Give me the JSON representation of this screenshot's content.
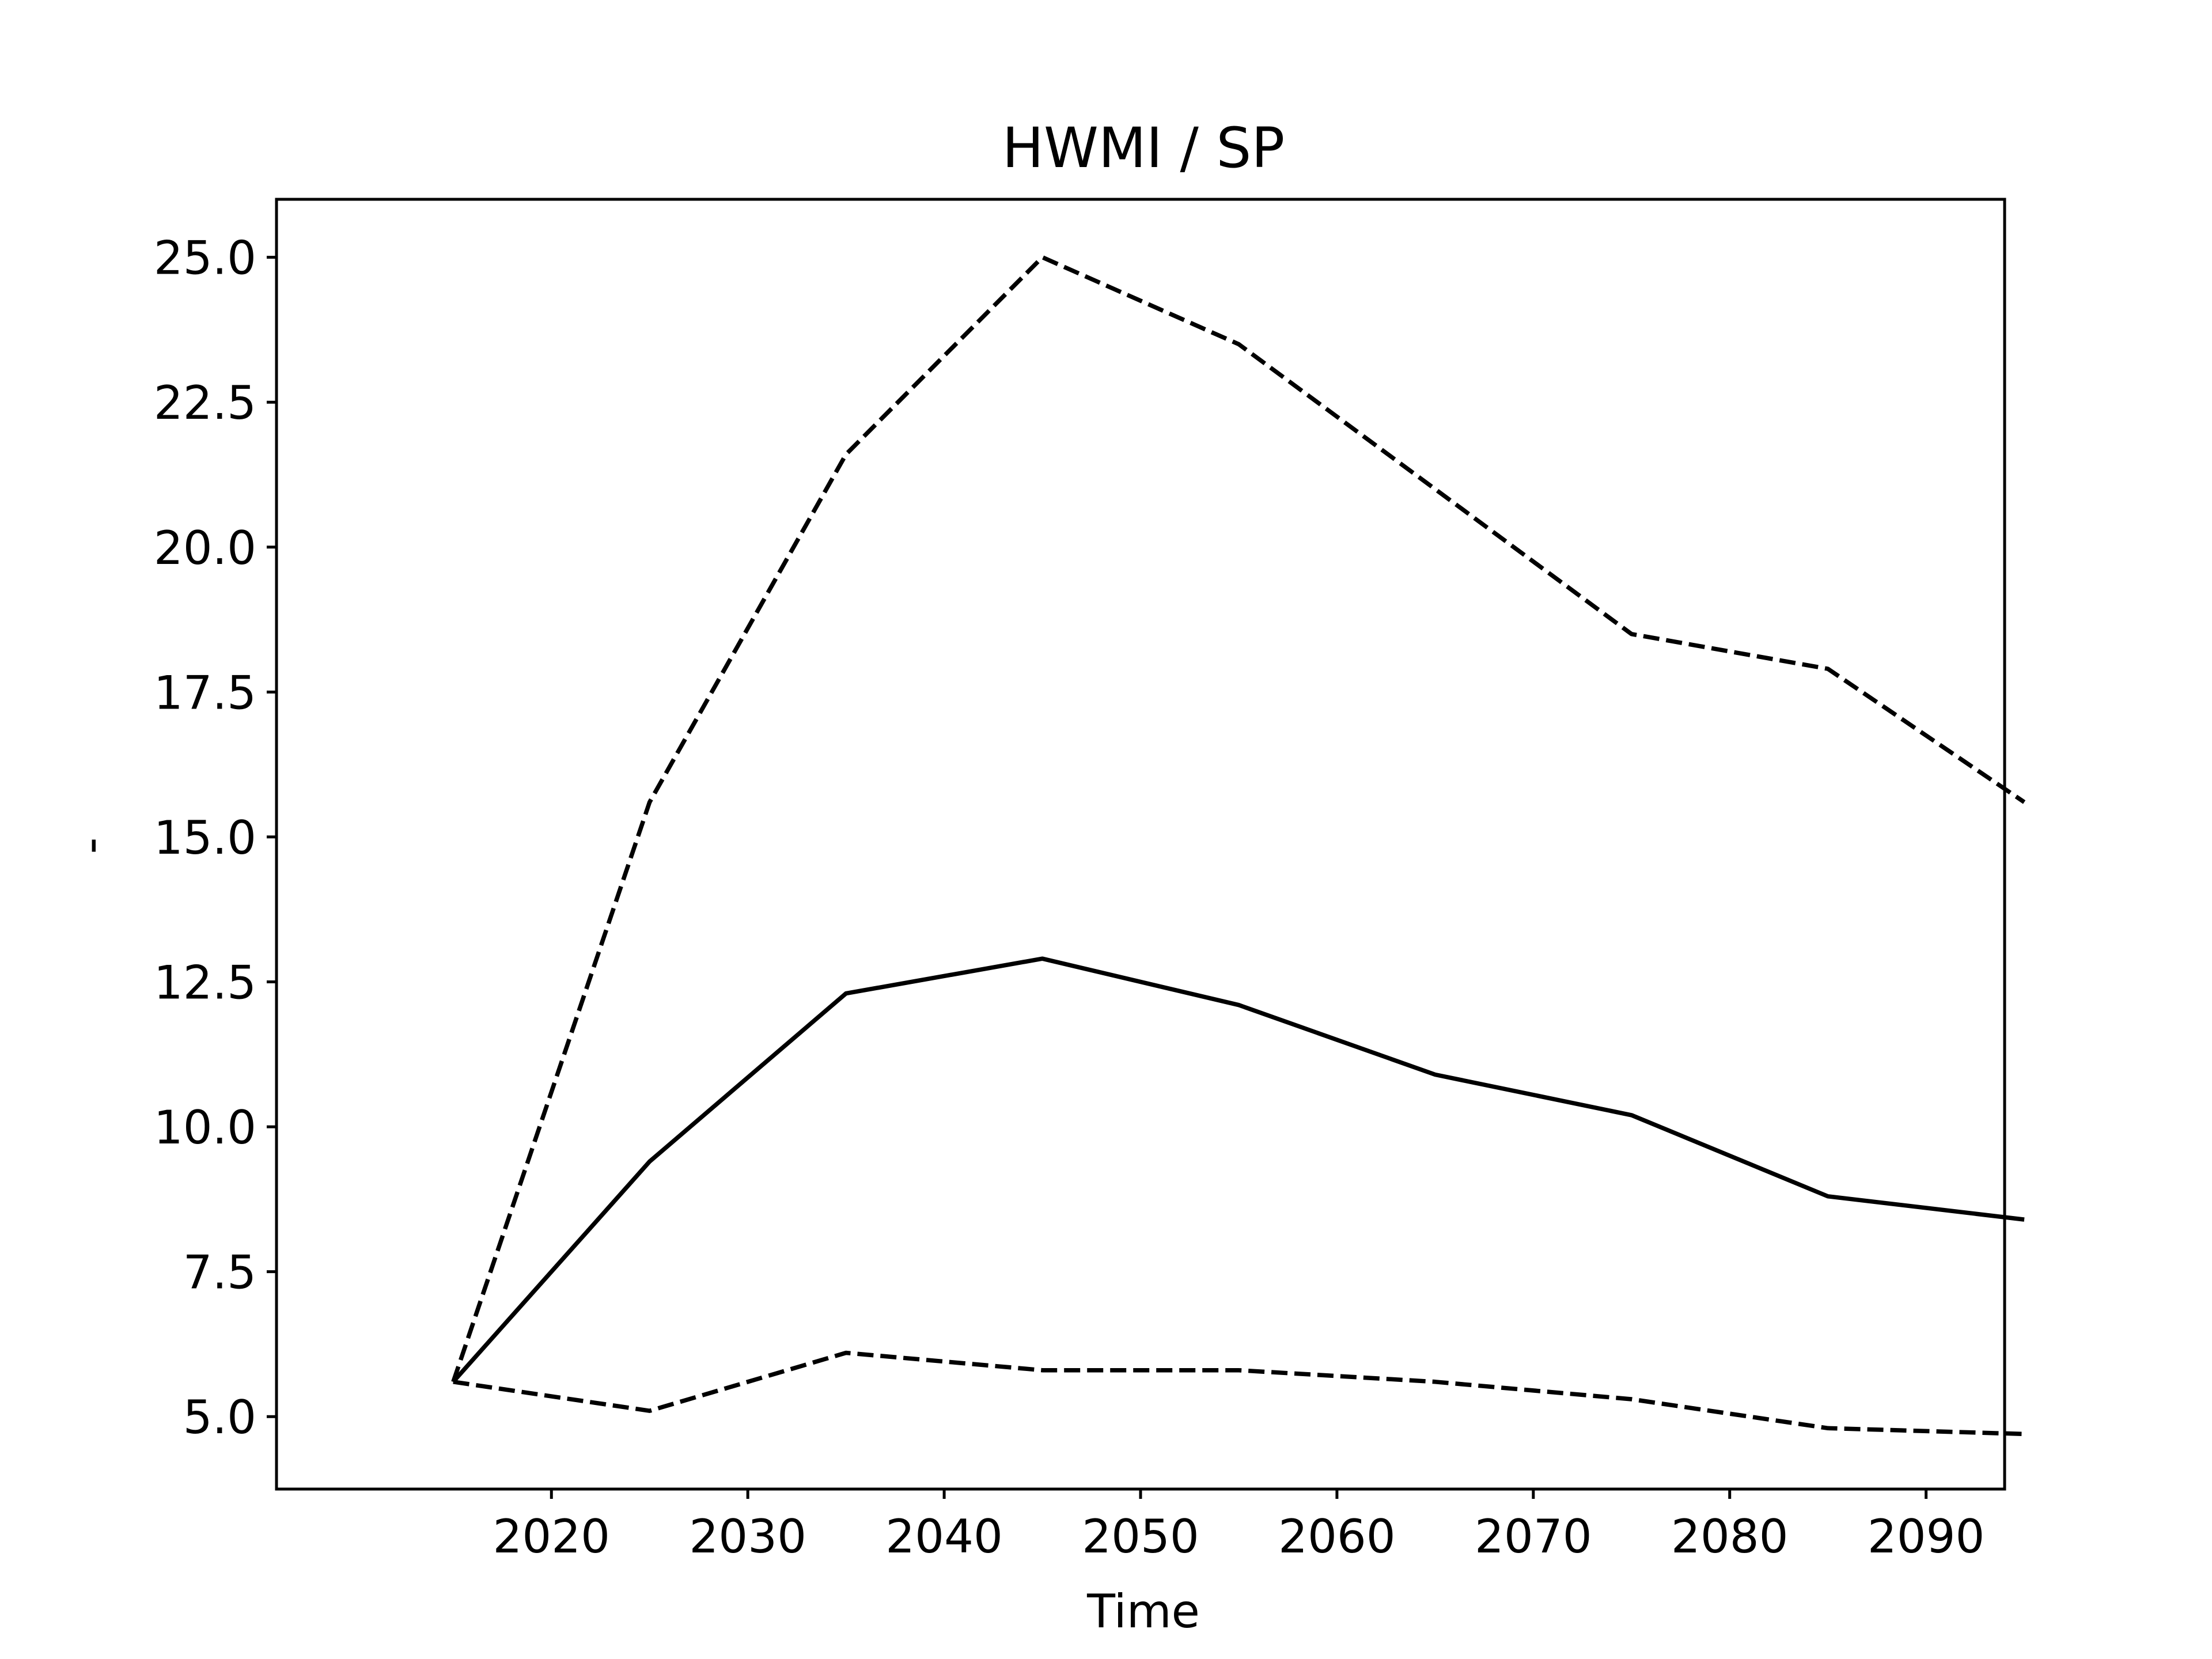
{
  "chart_data": {
    "type": "line",
    "title": "HWMI / SP",
    "xlabel": "Time",
    "ylabel": "-",
    "x": [
      2015,
      2025,
      2035,
      2045,
      2055,
      2065,
      2075,
      2085,
      2095
    ],
    "xlim": [
      2006,
      2094
    ],
    "ylim": [
      3.75,
      26.0
    ],
    "xticks": [
      2020,
      2030,
      2040,
      2050,
      2060,
      2070,
      2080,
      2090
    ],
    "xtick_labels": [
      "2020",
      "2030",
      "2040",
      "2050",
      "2060",
      "2070",
      "2080",
      "2090"
    ],
    "yticks": [
      5.0,
      7.5,
      10.0,
      12.5,
      15.0,
      17.5,
      20.0,
      22.5,
      25.0
    ],
    "ytick_labels": [
      "5.0",
      "7.5",
      "10.0",
      "12.5",
      "15.0",
      "17.5",
      "20.0",
      "22.5",
      "25.0"
    ],
    "grid": false,
    "legend": "none",
    "series": [
      {
        "style": "dashed",
        "color": "#000000",
        "values": [
          5.6,
          15.6,
          21.6,
          25.0,
          23.5,
          21.0,
          18.5,
          17.9,
          15.6
        ]
      },
      {
        "style": "solid",
        "color": "#000000",
        "values": [
          5.6,
          9.4,
          12.3,
          12.9,
          12.1,
          10.9,
          10.2,
          8.8,
          8.4
        ]
      },
      {
        "style": "dashed",
        "color": "#000000",
        "values": [
          5.6,
          5.1,
          6.1,
          5.8,
          5.8,
          5.6,
          5.3,
          4.8,
          4.7
        ]
      }
    ]
  }
}
